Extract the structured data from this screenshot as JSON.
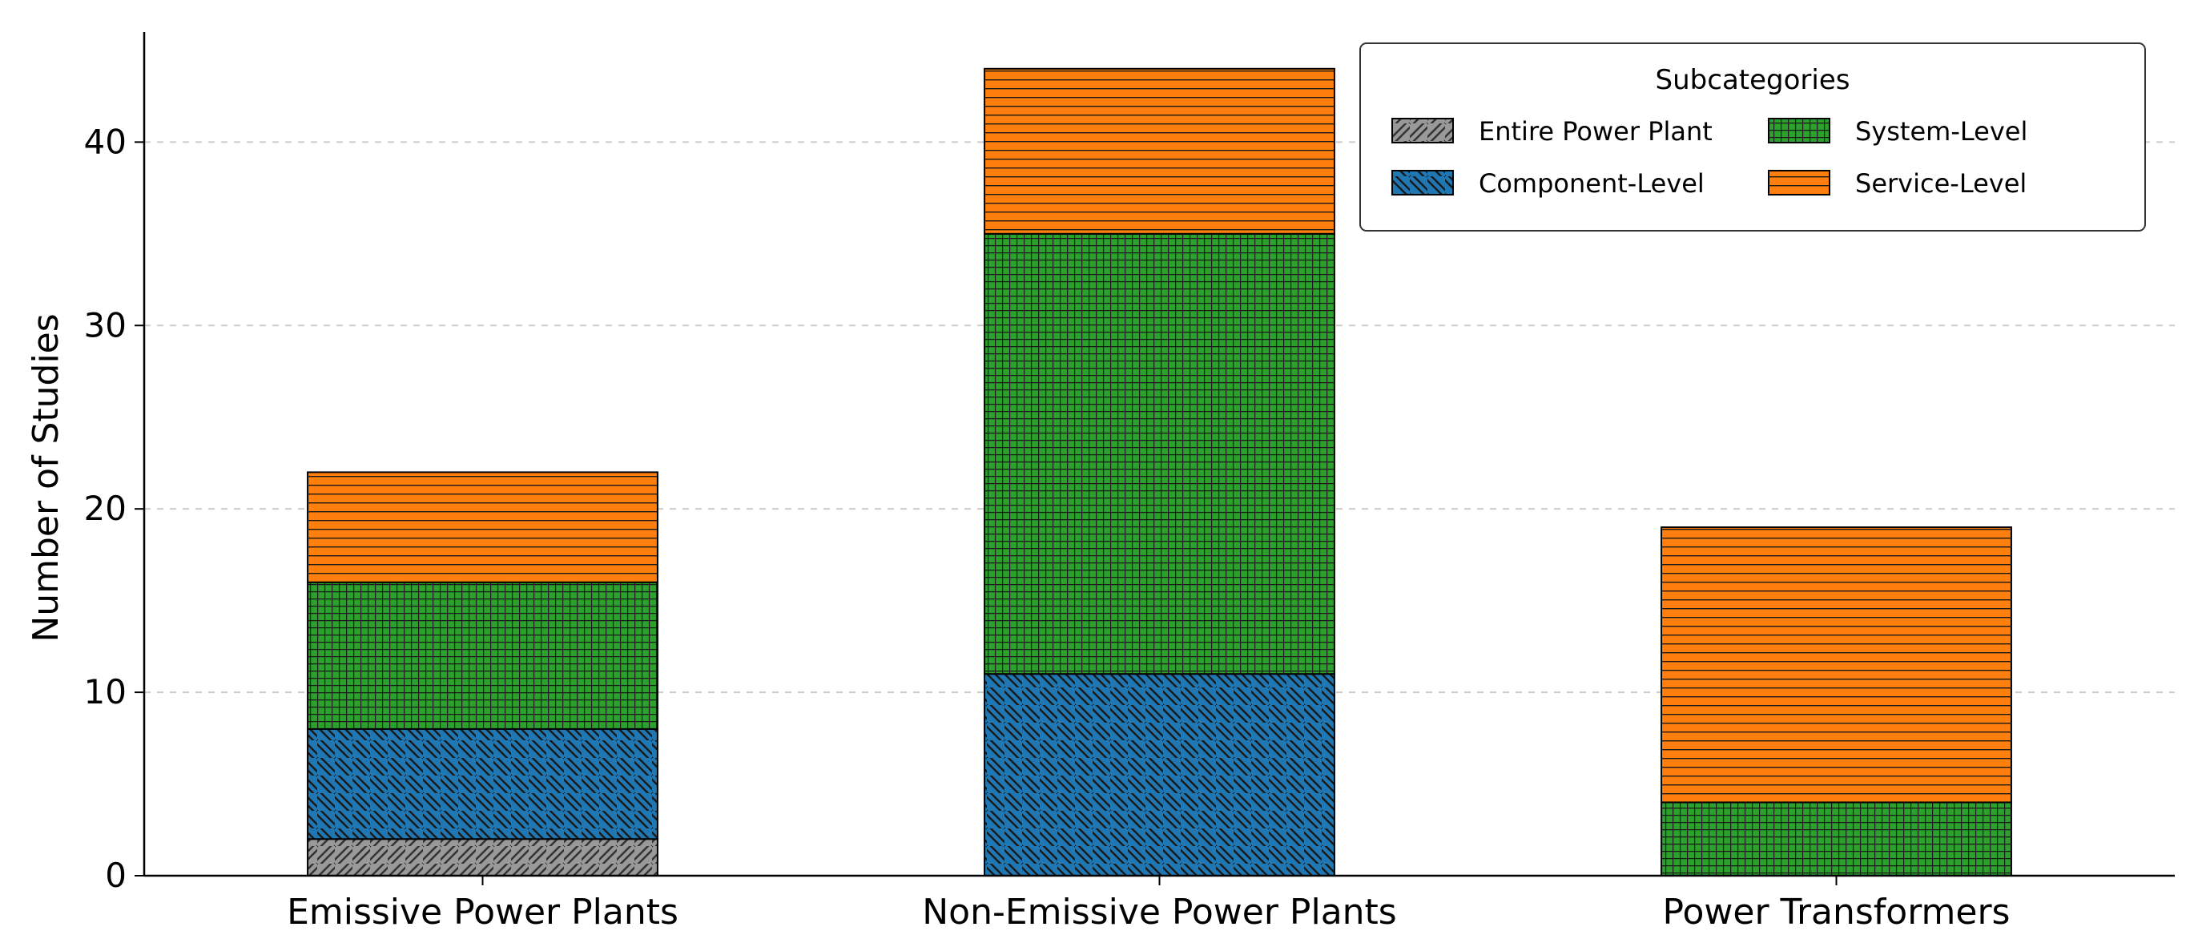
{
  "chart_data": {
    "type": "bar",
    "stacked": true,
    "categories": [
      "Emissive Power Plants",
      "Non-Emissive Power Plants",
      "Power Transformers"
    ],
    "series": [
      {
        "name": "Entire Power Plant",
        "values": [
          2,
          0,
          0
        ],
        "color": "#999999",
        "pattern": "diagonal"
      },
      {
        "name": "Component-Level",
        "values": [
          6,
          11,
          0
        ],
        "color": "#1f77b4",
        "pattern": "backslash"
      },
      {
        "name": "System-Level",
        "values": [
          8,
          24,
          4
        ],
        "color": "#2ca02c",
        "pattern": "grid"
      },
      {
        "name": "Service-Level",
        "values": [
          6,
          9,
          15
        ],
        "color": "#ff7f0e",
        "pattern": "horizontal"
      }
    ],
    "ylabel": "Number of Studies",
    "xlabel": "",
    "ylim": [
      0,
      46
    ],
    "yticks": [
      0,
      10,
      20,
      30,
      40
    ],
    "grid": "y-dashed",
    "legend": {
      "title": "Subcategories",
      "placement": "top-right",
      "columns": 2
    }
  }
}
